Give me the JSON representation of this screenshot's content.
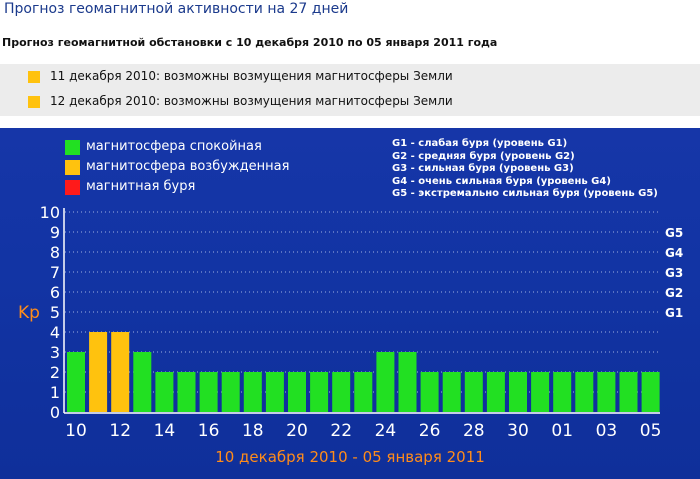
{
  "header": {
    "title": "Прогноз геомагнитной активности на 27 дней",
    "subtitle": "Прогноз геомагнитной обстановки с 10 декабря 2010 по 05 января 2011 года"
  },
  "alerts": [
    {
      "text": "11 декабря 2010: возможны возмущения магнитосферы Земли",
      "color": "#ffc20e"
    },
    {
      "text": "12 декабря 2010: возможны возмущения магнитосферы Земли",
      "color": "#ffc20e"
    }
  ],
  "legend": [
    {
      "label": "магнитосфера спокойная",
      "color": "#22e022"
    },
    {
      "label": "магнитосфера возбужденная",
      "color": "#ffc20e"
    },
    {
      "label": "магнитная буря",
      "color": "#ff1a1a"
    }
  ],
  "storm_levels": [
    "G1 - слабая буря (уровень G1)",
    "G2 - средняя буря (уровень G2)",
    "G3 - сильная буря (уровень G3)",
    "G4 - очень сильная буря (уровень G4)",
    "G5 - экстремально сильная буря (уровень G5)"
  ],
  "colors": {
    "background": "#1234a4",
    "quiet": "#22e022",
    "excited": "#ffc20e",
    "storm": "#ff1a1a",
    "axis_label": "#ff8c1a",
    "grid": "#9fb0e0"
  },
  "chart_data": {
    "type": "bar",
    "ylabel": "Kp",
    "xlabel": "10 декабря 2010 - 05 января 2011",
    "ylim": [
      0,
      10
    ],
    "yticks": [
      0,
      1,
      2,
      3,
      4,
      5,
      6,
      7,
      8,
      9,
      10
    ],
    "right_ticks": [
      {
        "value": 5,
        "label": "G1"
      },
      {
        "value": 6,
        "label": "G2"
      },
      {
        "value": 7,
        "label": "G3"
      },
      {
        "value": 8,
        "label": "G4"
      },
      {
        "value": 9,
        "label": "G5"
      }
    ],
    "categories": [
      "10",
      "11",
      "12",
      "13",
      "14",
      "15",
      "16",
      "17",
      "18",
      "19",
      "20",
      "21",
      "22",
      "23",
      "24",
      "25",
      "26",
      "27",
      "28",
      "29",
      "30",
      "31",
      "01",
      "02",
      "03",
      "04",
      "05"
    ],
    "x_tick_labels": [
      "10",
      "12",
      "14",
      "16",
      "18",
      "20",
      "22",
      "24",
      "26",
      "28",
      "30",
      "01",
      "03",
      "05"
    ],
    "values": [
      3,
      4,
      4,
      3,
      2,
      2,
      2,
      2,
      2,
      2,
      2,
      2,
      2,
      2,
      3,
      3,
      2,
      2,
      2,
      2,
      2,
      2,
      2,
      2,
      2,
      2,
      2
    ],
    "bar_status": [
      "quiet",
      "excited",
      "excited",
      "quiet",
      "quiet",
      "quiet",
      "quiet",
      "quiet",
      "quiet",
      "quiet",
      "quiet",
      "quiet",
      "quiet",
      "quiet",
      "quiet",
      "quiet",
      "quiet",
      "quiet",
      "quiet",
      "quiet",
      "quiet",
      "quiet",
      "quiet",
      "quiet",
      "quiet",
      "quiet",
      "quiet"
    ],
    "grid": true
  }
}
